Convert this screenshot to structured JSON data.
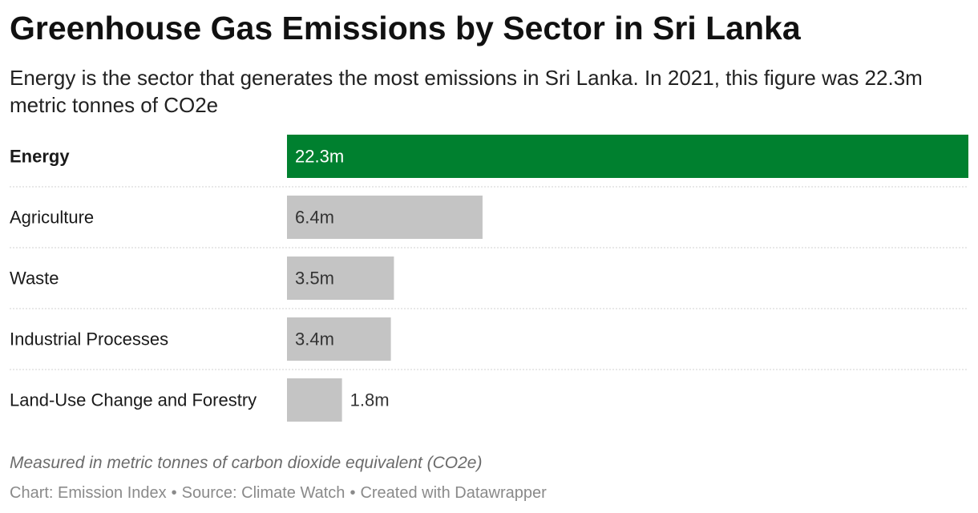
{
  "header": {
    "title": "Greenhouse Gas Emissions by Sector in Sri Lanka",
    "subtitle": "Energy is the sector that generates the most emissions in Sri Lanka. In 2021, this figure was 22.3m metric tonnes of CO2e"
  },
  "chart_data": {
    "type": "bar",
    "orientation": "horizontal",
    "title": "",
    "xlabel": "",
    "ylabel": "",
    "categories": [
      "Energy",
      "Agriculture",
      "Waste",
      "Industrial Processes",
      "Land-Use Change and Forestry"
    ],
    "values": [
      22.3,
      6.4,
      3.5,
      3.4,
      1.8
    ],
    "value_labels": [
      "22.3m",
      "6.4m",
      "3.5m",
      "3.4m",
      "1.8m"
    ],
    "highlight": "Energy",
    "xlim": [
      0,
      22.3
    ],
    "grid": false,
    "colors": {
      "highlight": "#00802f",
      "default": "#c4c4c4",
      "row_divider": "#d0d0d0"
    }
  },
  "notes": "Measured in metric tonnes of carbon dioxide equivalent (CO2e)",
  "footer": {
    "chart_credit": "Chart: Emission Index",
    "source": "Source: Climate Watch",
    "created_with": "Created with Datawrapper",
    "separator": "•"
  }
}
